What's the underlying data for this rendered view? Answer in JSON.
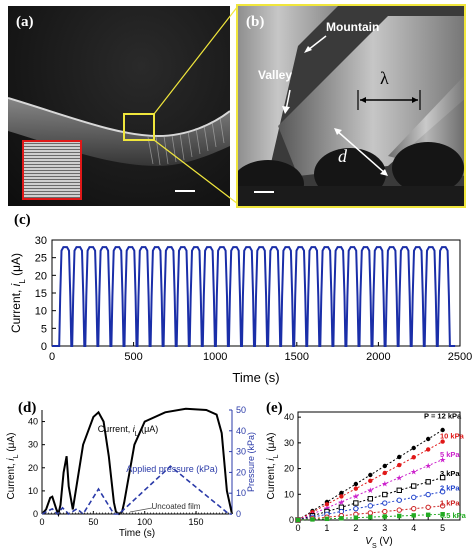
{
  "panels": {
    "a": {
      "label": "(a)"
    },
    "b": {
      "label": "(b)",
      "annotations": {
        "mountain": "Mountain",
        "valley": "Valley",
        "lambda": "λ",
        "depth": "d"
      }
    },
    "c": {
      "label": "(c)"
    },
    "d": {
      "label": "(d)"
    },
    "e": {
      "label": "(e)"
    }
  },
  "colors": {
    "zoom_box": "#f0e63c",
    "inset_border": "#e01818",
    "trace_c": "#1a2ea8",
    "black": "#000000",
    "pressure_dash": "#2a3aa8"
  },
  "chart_data": [
    {
      "id": "c",
      "type": "line",
      "xlabel": "Time (s)",
      "ylabel": "Current, i_L (μA)",
      "ylabel_main": "Current, ",
      "ylabel_var": "i",
      "ylabel_sub": "L",
      "ylabel_unit": " (μA)",
      "xlim": [
        0,
        2500
      ],
      "ylim": [
        0,
        30
      ],
      "xticks": [
        0,
        500,
        1000,
        1500,
        2000,
        2500
      ],
      "yticks": [
        0,
        5,
        10,
        15,
        20,
        25,
        30
      ],
      "period_s": 80,
      "cycles": 30,
      "start_s": 50,
      "high_uA": 28,
      "low_uA": 0,
      "series": [
        {
          "color": "#1a2ea8"
        }
      ]
    },
    {
      "id": "d",
      "type": "line",
      "xlabel": "Time (s)",
      "ylabel": "Current, i_L (μA)",
      "ylabel_main": "Current, ",
      "ylabel_var": "i",
      "ylabel_sub": "L",
      "ylabel_unit": " (μA)",
      "y2label": "Pressure (kPa)",
      "xlim": [
        0,
        185
      ],
      "ylim": [
        0,
        45
      ],
      "y2lim": [
        0,
        50
      ],
      "xticks": [
        0,
        50,
        100,
        150
      ],
      "yticks": [
        0,
        10,
        20,
        30,
        40
      ],
      "y2ticks": [
        0,
        10,
        20,
        30,
        40,
        50
      ],
      "annotations": {
        "current": "Current, i_L (μA)",
        "current_main": "Current, ",
        "current_var": "i",
        "current_sub": "L",
        "current_unit": " (μA)",
        "pressure": "Applied pressure (kPa)",
        "uncoated": "Uncoated film"
      },
      "series": [
        {
          "style": "solid",
          "x": [
            0,
            4,
            8,
            10,
            14,
            16,
            18,
            21,
            24,
            26,
            30,
            40,
            50,
            55,
            60,
            65,
            70,
            72,
            75,
            78,
            80,
            90,
            100,
            120,
            140,
            160,
            170,
            175,
            180,
            185
          ],
          "y": [
            0,
            2,
            7,
            7.5,
            2,
            0,
            4,
            18,
            25,
            12,
            2,
            30,
            42,
            44,
            40,
            25,
            5,
            1,
            0,
            1,
            5,
            30,
            40,
            44,
            45.5,
            45,
            43,
            35,
            10,
            0
          ]
        },
        {
          "style": "dashed",
          "x": [
            0,
            10,
            15,
            20,
            26,
            34,
            40,
            55,
            70,
            75,
            125,
            182,
            185
          ],
          "y": [
            0,
            2.5,
            0,
            3,
            0,
            2.5,
            0,
            12,
            0,
            0,
            23,
            0,
            0
          ]
        },
        {
          "style": "dotted",
          "x": [
            0,
            185
          ],
          "y": [
            0,
            0
          ]
        }
      ]
    },
    {
      "id": "e",
      "type": "scatter",
      "xlabel": "V_S (V)",
      "xlabel_var": "V",
      "xlabel_sub": "S",
      "xlabel_unit": " (V)",
      "ylabel": "Current, i_L (μA)",
      "ylabel_main": "Current, ",
      "ylabel_var": "i",
      "ylabel_sub": "L",
      "ylabel_unit": " (μA)",
      "xlim": [
        0,
        5.6
      ],
      "ylim": [
        0,
        42
      ],
      "xticks": [
        0,
        0.5,
        1,
        1.5,
        2,
        2.5,
        3,
        3.5,
        4,
        4.5,
        5
      ],
      "xticklabels": [
        "0",
        "",
        "1",
        "",
        "2",
        "",
        "3",
        "",
        "4",
        "",
        "5"
      ],
      "yticks": [
        0,
        10,
        20,
        30,
        40
      ],
      "x": [
        0,
        0.5,
        1,
        1.5,
        2,
        2.5,
        3,
        3.5,
        4,
        4.5,
        5
      ],
      "series": [
        {
          "name": "P = 12 kPa",
          "slope": 7.0,
          "color": "#000000",
          "marker": "circle-filled"
        },
        {
          "name": "10 kPa",
          "slope": 6.1,
          "color": "#e01818",
          "marker": "circle-filled"
        },
        {
          "name": "5 kPa",
          "slope": 4.7,
          "color": "#cc22cc",
          "marker": "star"
        },
        {
          "name": "3 kPa",
          "slope": 3.3,
          "color": "#000000",
          "marker": "square-open"
        },
        {
          "name": "2 kPa",
          "slope": 2.2,
          "color": "#2244cc",
          "marker": "circle-open"
        },
        {
          "name": "1 kPa",
          "slope": 1.1,
          "color": "#cc2222",
          "marker": "circle-open"
        },
        {
          "name": "0.5 kPa",
          "slope": 0.45,
          "color": "#22aa22",
          "marker": "square-filled"
        }
      ]
    }
  ]
}
